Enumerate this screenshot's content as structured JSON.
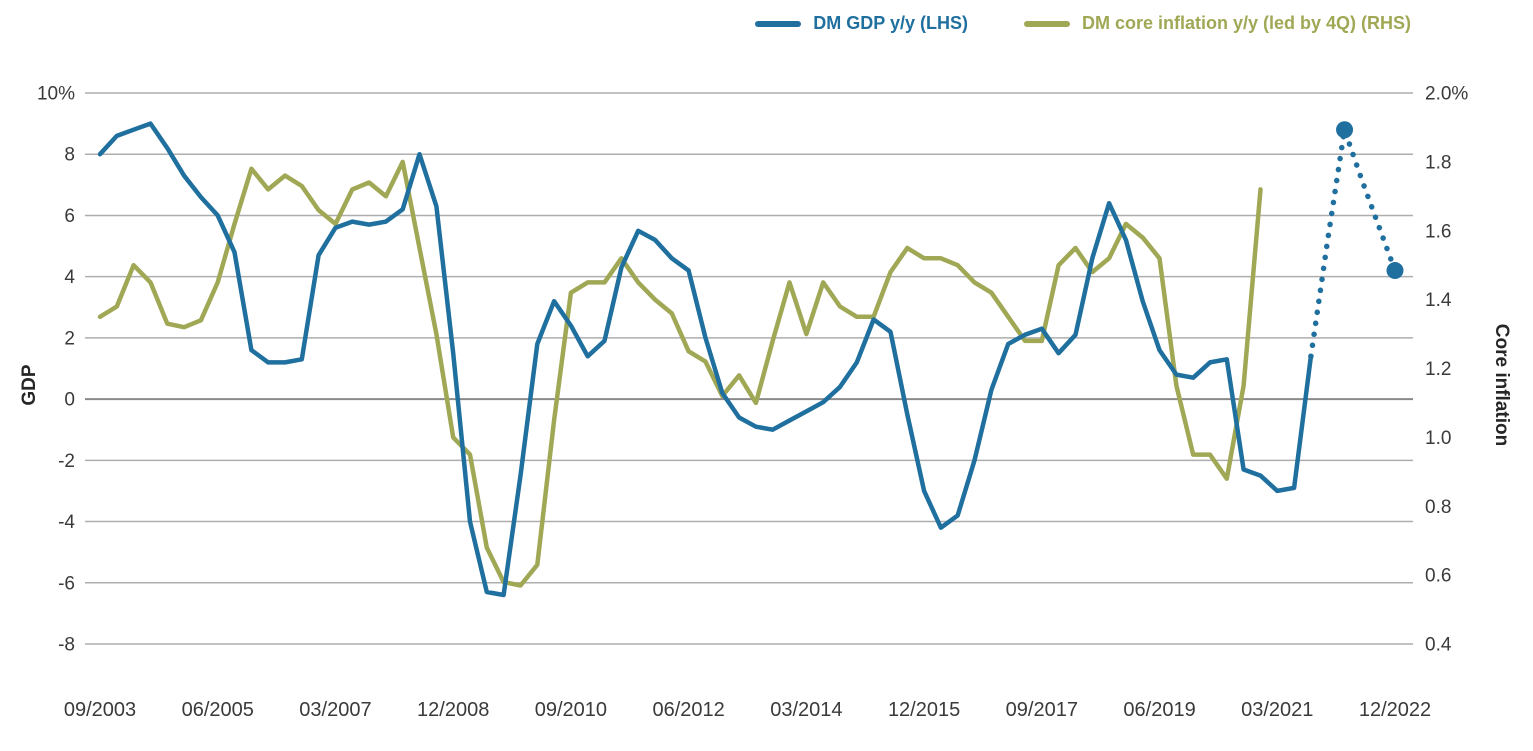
{
  "page": {
    "background": "#ffffff",
    "text_color": "#3a3a3a"
  },
  "chart_data": {
    "type": "line",
    "title": "",
    "frequency": "quarterly",
    "x_axis": {
      "start": "09/2003",
      "end": "12/2022",
      "points": 78,
      "tick_every": 7,
      "tick_labels": [
        "09/2003",
        "06/2005",
        "03/2007",
        "12/2008",
        "09/2010",
        "06/2012",
        "03/2014",
        "12/2015",
        "09/2017",
        "06/2019",
        "03/2021",
        "12/2022"
      ]
    },
    "left_axis": {
      "label": "GDP",
      "min": -8,
      "max": 10,
      "tick_values": [
        10,
        8,
        6,
        4,
        2,
        0,
        -2,
        -4,
        -6,
        -8
      ],
      "tick_labels": [
        "10%",
        "8",
        "6",
        "4",
        "2",
        "0",
        "-2",
        "-4",
        "-6",
        "-8"
      ]
    },
    "right_axis": {
      "label": "Core inflation",
      "min": 0.4,
      "max": 2.0,
      "tick_values": [
        2.0,
        1.8,
        1.6,
        1.4,
        1.2,
        1.0,
        0.8,
        0.6,
        0.4
      ],
      "tick_labels": [
        "2.0%",
        "1.8",
        "1.6",
        "1.4",
        "1.2",
        "1.0",
        "0.8",
        "0.6",
        "0.4"
      ]
    },
    "grid": {
      "color": "#aeaeae",
      "zero_line_color": "#8a8a8a",
      "legend_position": "top",
      "grid_on": true
    },
    "series": [
      {
        "name": "DM GDP y/y (LHS)",
        "axis": "left",
        "color": "#1f6f9f",
        "style": "solid_then_dotted",
        "solid_until_index": 72,
        "marker_indices": [
          74,
          77
        ],
        "values": [
          8.0,
          8.6,
          8.8,
          9.0,
          8.2,
          7.3,
          6.6,
          6.0,
          4.8,
          1.6,
          1.2,
          1.2,
          1.3,
          4.7,
          5.6,
          5.8,
          5.7,
          5.8,
          6.2,
          8.0,
          6.3,
          1.5,
          -4.0,
          -6.3,
          -6.4,
          -2.5,
          1.8,
          3.2,
          2.4,
          1.4,
          1.9,
          4.3,
          5.5,
          5.2,
          4.6,
          4.2,
          2.0,
          0.2,
          -0.6,
          -0.9,
          -1.0,
          -0.7,
          -0.4,
          -0.1,
          0.4,
          1.2,
          2.6,
          2.2,
          -0.5,
          -3.0,
          -4.2,
          -3.8,
          -2.0,
          0.3,
          1.8,
          2.1,
          2.3,
          1.5,
          2.1,
          4.6,
          6.4,
          5.2,
          3.2,
          1.6,
          0.8,
          0.7,
          1.2,
          1.3,
          -2.3,
          -2.5,
          -3.0,
          -2.9,
          1.4,
          5.2,
          8.8,
          7.2,
          5.7,
          4.2
        ]
      },
      {
        "name": "DM core inflation y/y (led by 4Q) (RHS)",
        "axis": "right",
        "color": "#a0a855",
        "style": "solid",
        "values": [
          1.35,
          1.38,
          1.5,
          1.45,
          1.33,
          1.32,
          1.34,
          1.45,
          1.62,
          1.78,
          1.72,
          1.76,
          1.73,
          1.66,
          1.62,
          1.72,
          1.74,
          1.7,
          1.8,
          1.55,
          1.3,
          1.0,
          0.95,
          0.68,
          0.58,
          0.57,
          0.63,
          1.05,
          1.42,
          1.45,
          1.45,
          1.52,
          1.45,
          1.4,
          1.36,
          1.25,
          1.22,
          1.12,
          1.18,
          1.1,
          1.28,
          1.45,
          1.3,
          1.45,
          1.38,
          1.35,
          1.35,
          1.48,
          1.55,
          1.52,
          1.52,
          1.5,
          1.45,
          1.42,
          1.35,
          1.28,
          1.28,
          1.5,
          1.55,
          1.48,
          1.52,
          1.62,
          1.58,
          1.52,
          1.15,
          0.95,
          0.95,
          0.88,
          1.15,
          1.72,
          null,
          null,
          null,
          null,
          null,
          null,
          null,
          null
        ]
      }
    ]
  }
}
